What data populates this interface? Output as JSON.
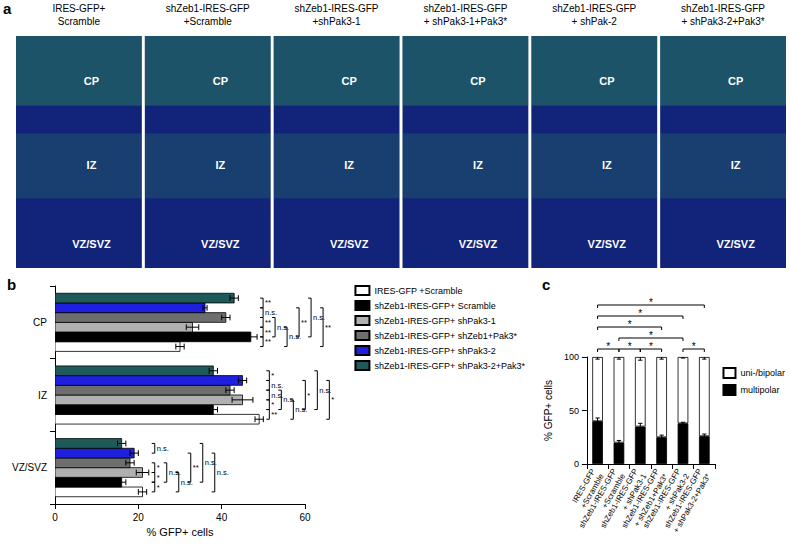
{
  "panel_a": {
    "label": "a",
    "images": [
      {
        "title": [
          "IRES-GFP+",
          "Scramble"
        ],
        "regions": [
          "CP",
          "IZ",
          "VZ/SVZ"
        ]
      },
      {
        "title": [
          "shZeb1-IRES-GFP",
          "+Scramble"
        ],
        "regions": [
          "CP",
          "IZ",
          "VZ/SVZ"
        ]
      },
      {
        "title": [
          "shZeb1-IRES-GFP",
          "+shPak3-1"
        ],
        "regions": [
          "CP",
          "IZ",
          "VZ/SVZ"
        ]
      },
      {
        "title": [
          "shZeb1-IRES-GFP",
          "+ shPak3-1+Pak3*"
        ],
        "regions": [
          "CP",
          "IZ",
          "VZ/SVZ"
        ]
      },
      {
        "title": [
          "shZeb1-IRES-GFP",
          "+ shPak-2"
        ],
        "regions": [
          "CP",
          "IZ",
          "VZ/SVZ"
        ]
      },
      {
        "title": [
          "shZeb1-IRES-GFP",
          "+ shPak3-2+Pak3*"
        ],
        "regions": [
          "CP",
          "IZ",
          "VZ/SVZ"
        ]
      }
    ]
  },
  "chart_data": [
    {
      "type": "bar",
      "title": "b",
      "orientation": "horizontal",
      "x_label": "% GFP+ cells",
      "categories": [
        "VZ/SVZ",
        "IZ",
        "CP"
      ],
      "xlim": [
        0,
        60
      ],
      "xticks": [
        0,
        20,
        40,
        60
      ],
      "grid": false,
      "legend": "upper right",
      "series": [
        {
          "name": "IRES-GFP +Scramble",
          "color": "#ffffff",
          "values": [
            21,
            49,
            30
          ],
          "errors": [
            1,
            1,
            1
          ]
        },
        {
          "name": "shZeb1-IRES-GFP+ Scramble",
          "color": "#000000",
          "values": [
            16,
            38,
            47
          ],
          "errors": [
            1,
            1,
            1.5
          ]
        },
        {
          "name": "shZeb1-IRES-GFP+ shPak3-1",
          "color": "#b0b0b0",
          "values": [
            21,
            45,
            33
          ],
          "errors": [
            1.5,
            2.5,
            1.5
          ]
        },
        {
          "name": "shZeb1-IRES-GFP+ shZeb1+Pak3*",
          "color": "#6e6e6e",
          "values": [
            18,
            42,
            41
          ],
          "errors": [
            1,
            1,
            1
          ]
        },
        {
          "name": "shZeb1-IRES-GFP+ shPak3-2",
          "color": "#1f1fe0",
          "values": [
            19,
            45,
            36
          ],
          "errors": [
            1,
            1,
            0.5
          ]
        },
        {
          "name": "shZeb1-IRES-GFP+ shPak3-2+Pak3*",
          "color": "#1f5a5a",
          "values": [
            16,
            38,
            43
          ],
          "errors": [
            1,
            1,
            1
          ]
        }
      ],
      "significance": [
        {
          "category": "CP",
          "between": [
            "shZeb1-IRES-GFP+ shPak3-2+Pak3*",
            "shZeb1-IRES-GFP+ shPak3-2"
          ],
          "label": "**"
        },
        {
          "category": "CP",
          "between": [
            "shZeb1-IRES-GFP+ shPak3-2",
            "shZeb1-IRES-GFP+ shZeb1+Pak3*"
          ],
          "label": "n.s."
        },
        {
          "category": "CP",
          "between": [
            "shZeb1-IRES-GFP+ shZeb1+Pak3*",
            "shZeb1-IRES-GFP+ shPak3-1"
          ],
          "label": "**"
        },
        {
          "category": "CP",
          "between": [
            "shZeb1-IRES-GFP+ shPak3-1",
            "shZeb1-IRES-GFP+ Scramble"
          ],
          "label": "**"
        },
        {
          "category": "CP",
          "between": [
            "shZeb1-IRES-GFP+ Scramble",
            "IRES-GFP +Scramble"
          ],
          "label": "**"
        },
        {
          "category": "CP",
          "between": [
            "shZeb1-IRES-GFP+ shZeb1+Pak3*",
            "shZeb1-IRES-GFP+ Scramble"
          ],
          "label": "n.s."
        },
        {
          "category": "CP",
          "between": [
            "shZeb1-IRES-GFP+ shPak3-1",
            "IRES-GFP +Scramble"
          ],
          "label": "n.s."
        },
        {
          "category": "CP",
          "between": [
            "shZeb1-IRES-GFP+ shPak3-2",
            "shZeb1-IRES-GFP+ Scramble"
          ],
          "label": "**"
        },
        {
          "category": "CP",
          "between": [
            "shZeb1-IRES-GFP+ shPak3-2+Pak3*",
            "shZeb1-IRES-GFP+ Scramble"
          ],
          "label": "n.s."
        },
        {
          "category": "CP",
          "between": [
            "shZeb1-IRES-GFP+ shPak3-2",
            "IRES-GFP +Scramble"
          ],
          "label": "**"
        },
        {
          "category": "IZ",
          "between": [
            "shZeb1-IRES-GFP+ shPak3-2+Pak3*",
            "shZeb1-IRES-GFP+ shPak3-2"
          ],
          "label": "*"
        },
        {
          "category": "IZ",
          "between": [
            "shZeb1-IRES-GFP+ shPak3-2",
            "shZeb1-IRES-GFP+ shZeb1+Pak3*"
          ],
          "label": "n.s."
        },
        {
          "category": "IZ",
          "between": [
            "shZeb1-IRES-GFP+ shZeb1+Pak3*",
            "shZeb1-IRES-GFP+ shPak3-1"
          ],
          "label": "n.s."
        },
        {
          "category": "IZ",
          "between": [
            "shZeb1-IRES-GFP+ shPak3-1",
            "shZeb1-IRES-GFP+ Scramble"
          ],
          "label": "*"
        },
        {
          "category": "IZ",
          "between": [
            "shZeb1-IRES-GFP+ Scramble",
            "IRES-GFP +Scramble"
          ],
          "label": "**"
        },
        {
          "category": "IZ",
          "between": [
            "shZeb1-IRES-GFP+ shZeb1+Pak3*",
            "shZeb1-IRES-GFP+ Scramble"
          ],
          "label": "n.s."
        },
        {
          "category": "IZ",
          "between": [
            "shZeb1-IRES-GFP+ shPak3-1",
            "IRES-GFP +Scramble"
          ],
          "label": "n.s."
        },
        {
          "category": "IZ",
          "between": [
            "shZeb1-IRES-GFP+ shPak3-2",
            "shZeb1-IRES-GFP+ Scramble"
          ],
          "label": "*"
        },
        {
          "category": "IZ",
          "between": [
            "shZeb1-IRES-GFP+ shPak3-2+Pak3*",
            "shZeb1-IRES-GFP+ Scramble"
          ],
          "label": "n.s."
        },
        {
          "category": "IZ",
          "between": [
            "shZeb1-IRES-GFP+ shPak3-2",
            "IRES-GFP +Scramble"
          ],
          "label": "*"
        },
        {
          "category": "VZ/SVZ",
          "between": [
            "shZeb1-IRES-GFP+ shPak3-2+Pak3*",
            "shZeb1-IRES-GFP+ shPak3-2"
          ],
          "label": "n.s."
        },
        {
          "category": "VZ/SVZ",
          "between": [
            "shZeb1-IRES-GFP+ shZeb1+Pak3*",
            "shZeb1-IRES-GFP+ shPak3-1"
          ],
          "label": "*"
        },
        {
          "category": "VZ/SVZ",
          "between": [
            "shZeb1-IRES-GFP+ shPak3-1",
            "shZeb1-IRES-GFP+ Scramble"
          ],
          "label": "*"
        },
        {
          "category": "VZ/SVZ",
          "between": [
            "shZeb1-IRES-GFP+ Scramble",
            "IRES-GFP +Scramble"
          ],
          "label": "*"
        },
        {
          "category": "VZ/SVZ",
          "between": [
            "shZeb1-IRES-GFP+ shZeb1+Pak3*",
            "shZeb1-IRES-GFP+ Scramble"
          ],
          "label": "n.s."
        },
        {
          "category": "VZ/SVZ",
          "between": [
            "shZeb1-IRES-GFP+ shPak3-1",
            "IRES-GFP +Scramble"
          ],
          "label": "n.s."
        },
        {
          "category": "VZ/SVZ",
          "between": [
            "shZeb1-IRES-GFP+ shPak3-2",
            "shZeb1-IRES-GFP+ Scramble"
          ],
          "label": "**"
        },
        {
          "category": "VZ/SVZ",
          "between": [
            "shZeb1-IRES-GFP+ shPak3-2+Pak3*",
            "shZeb1-IRES-GFP+ Scramble"
          ],
          "label": "n.s."
        },
        {
          "category": "VZ/SVZ",
          "between": [
            "shZeb1-IRES-GFP+ shPak3-2",
            "IRES-GFP +Scramble"
          ],
          "label": "n.s."
        }
      ]
    },
    {
      "type": "bar",
      "title": "c",
      "stacked": true,
      "y_label": "% GFP+ cells",
      "categories": [
        "IRES-GFP\n+Scramble",
        "shZeb1-IRES-GFP\n+Scramble",
        "shZeb1-IRES-GFP\n+ shPak3-1",
        "shZeb1-IRES-GFP\n+ shZeb1+Pak3*",
        "shZeb1-IRES-GFP\n+ shPak3-2",
        "shZeb1-IRES-GFP\n+ shPak3-2+Pak3*"
      ],
      "ylim": [
        0,
        100
      ],
      "yticks": [
        0,
        50,
        100
      ],
      "grid": false,
      "legend": "right",
      "series": [
        {
          "name": "uni-/bipolar",
          "color": "#ffffff",
          "values": [
            60,
            80,
            65,
            75,
            62,
            74
          ],
          "errors": [
            2,
            2,
            3,
            2,
            1,
            2
          ]
        },
        {
          "name": "multipolar",
          "color": "#000000",
          "values": [
            40,
            20,
            35,
            25,
            38,
            26
          ],
          "errors": [
            3,
            2,
            3,
            2,
            1,
            2
          ]
        }
      ],
      "significance": [
        {
          "between": [
            "IRES-GFP\n+Scramble",
            "shZeb1-IRES-GFP\n+Scramble"
          ],
          "label": "*"
        },
        {
          "between": [
            "shZeb1-IRES-GFP\n+Scramble",
            "shZeb1-IRES-GFP\n+ shPak3-1"
          ],
          "label": "*"
        },
        {
          "between": [
            "shZeb1-IRES-GFP\n+ shPak3-1",
            "shZeb1-IRES-GFP\n+ shZeb1+Pak3*"
          ],
          "label": "*"
        },
        {
          "between": [
            "shZeb1-IRES-GFP\n+ shPak3-2",
            "shZeb1-IRES-GFP\n+ shPak3-2+Pak3*"
          ],
          "label": "*"
        },
        {
          "between": [
            "shZeb1-IRES-GFP\n+Scramble",
            "shZeb1-IRES-GFP\n+ shPak3-2"
          ],
          "label": "*"
        },
        {
          "between": [
            "IRES-GFP\n+Scramble",
            "shZeb1-IRES-GFP\n+ shZeb1+Pak3*"
          ],
          "label": "*"
        },
        {
          "between": [
            "IRES-GFP\n+Scramble",
            "shZeb1-IRES-GFP\n+ shPak3-2"
          ],
          "label": "*"
        },
        {
          "between": [
            "IRES-GFP\n+Scramble",
            "shZeb1-IRES-GFP\n+ shPak3-2+Pak3*"
          ],
          "label": "*"
        }
      ]
    }
  ]
}
